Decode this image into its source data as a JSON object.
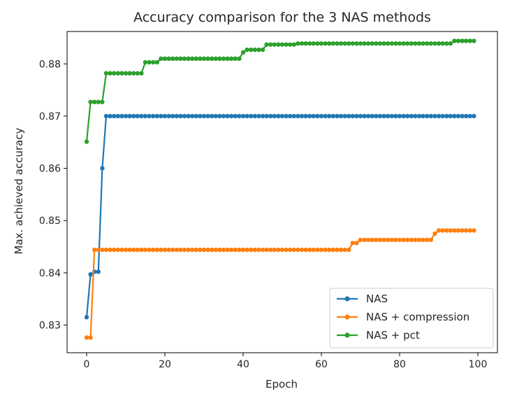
{
  "chart_data": {
    "type": "line",
    "title": "Accuracy comparison for the 3 NAS methods",
    "xlabel": "Epoch",
    "ylabel": "Max. achieved accuracy",
    "xlim": [
      -5,
      105
    ],
    "ylim": [
      0.8247,
      0.8862
    ],
    "x_ticks": [
      0,
      20,
      40,
      60,
      80,
      100
    ],
    "y_ticks": [
      0.83,
      0.84,
      0.85,
      0.86,
      0.87,
      0.88
    ],
    "x_tick_labels": [
      "0",
      "20",
      "40",
      "60",
      "80",
      "100"
    ],
    "y_tick_labels": [
      "0.83",
      "0.84",
      "0.85",
      "0.86",
      "0.87",
      "0.88"
    ],
    "grid": false,
    "legend": {
      "position": "lower-right"
    },
    "marker": "circle",
    "series": [
      {
        "name": "NAS",
        "color": "#1f77b4",
        "steps": [
          [
            0,
            0.8315
          ],
          [
            1,
            0.8397
          ],
          [
            2,
            0.8402
          ],
          [
            4,
            0.86
          ],
          [
            5,
            0.87
          ]
        ]
      },
      {
        "name": "NAS + compression",
        "color": "#ff7f0e",
        "steps": [
          [
            0,
            0.8276
          ],
          [
            2,
            0.8444
          ],
          [
            68,
            0.8457
          ],
          [
            70,
            0.8463
          ],
          [
            89,
            0.8475
          ],
          [
            90,
            0.8481
          ]
        ]
      },
      {
        "name": "NAS + pct",
        "color": "#2ca02c",
        "steps": [
          [
            0,
            0.8651
          ],
          [
            1,
            0.8727
          ],
          [
            5,
            0.8782
          ],
          [
            15,
            0.8803
          ],
          [
            19,
            0.881
          ],
          [
            40,
            0.8822
          ],
          [
            41,
            0.8827
          ],
          [
            46,
            0.8837
          ],
          [
            54,
            0.8839
          ],
          [
            94,
            0.8844
          ]
        ]
      }
    ],
    "n_epochs": 100
  }
}
